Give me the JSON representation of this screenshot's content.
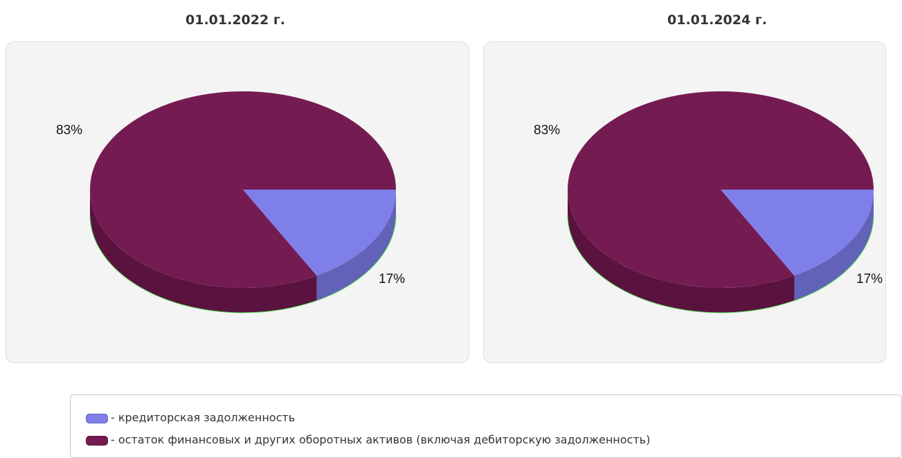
{
  "colors": {
    "creditor": "#7f7fea",
    "creditor_side": "#6262b8",
    "other": "#741b52",
    "other_side": "#5a123e"
  },
  "legend": {
    "items": [
      {
        "label": "- кредиторская задолженность",
        "color": "#7f7fea"
      },
      {
        "label": "- остаток финансовых и других оборотных активов (включая дебиторскую задолженность)",
        "color": "#741b52"
      }
    ]
  },
  "chart_data": [
    {
      "type": "pie",
      "title": "01.01.2022 г.",
      "slices": [
        {
          "label": "кредиторская задолженность",
          "value": 17,
          "display": "17%"
        },
        {
          "label": "остаток финансовых и других оборотных активов (включая дебиторскую задолженность)",
          "value": 83,
          "display": "83%"
        }
      ]
    },
    {
      "type": "pie",
      "title": "01.01.2024 г.",
      "slices": [
        {
          "label": "кредиторская задолженность",
          "value": 17,
          "display": "17%"
        },
        {
          "label": "остаток финансовых и других оборотных активов (включая дебиторскую задолженность)",
          "value": 83,
          "display": "83%"
        }
      ]
    }
  ]
}
